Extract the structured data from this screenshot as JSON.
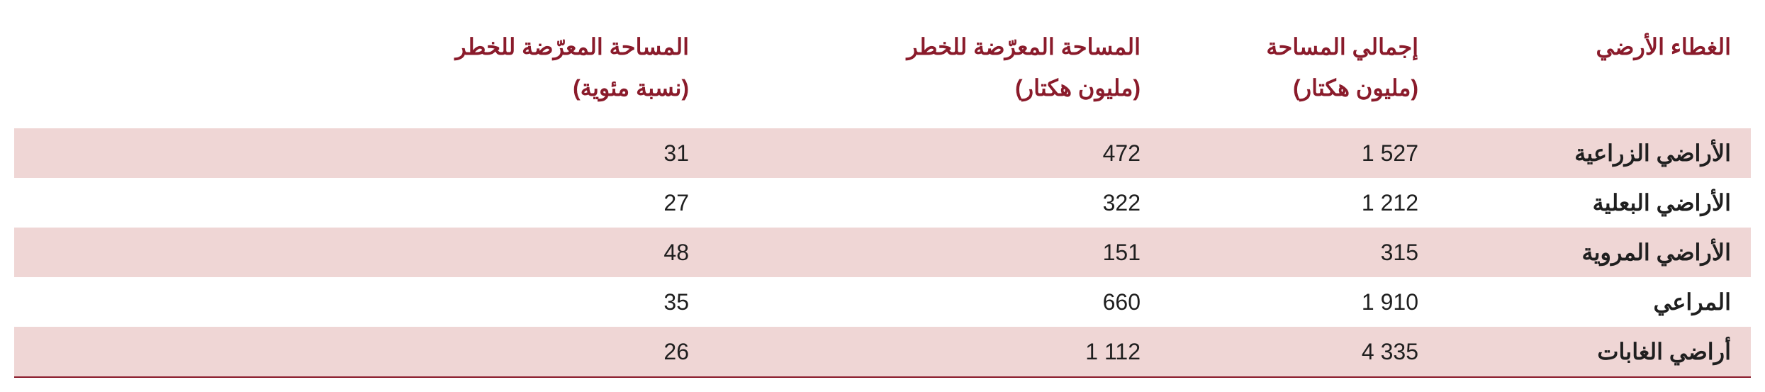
{
  "table": {
    "type": "table",
    "header_color": "#8a1b2b",
    "body_text_color": "#1f1f1f",
    "stripe_color": "#efd6d5",
    "background_color": "#ffffff",
    "border_color": "#8a1b2b",
    "header_fontsize": 32,
    "body_fontsize": 32,
    "column_widths_pct": [
      18,
      16,
      26,
      40
    ],
    "columns": [
      {
        "line1": "الغطاء الأرضي",
        "line2": "",
        "align": "right"
      },
      {
        "line1": "إجمالي المساحة",
        "line2": "(مليون هكتار)",
        "align": "right"
      },
      {
        "line1": "المساحة المعرّضة للخطر",
        "line2": "(مليون هكتار)",
        "align": "right"
      },
      {
        "line1": "المساحة المعرّضة للخطر",
        "line2": "(نسبة مئوية)",
        "align": "right"
      }
    ],
    "rows": [
      {
        "label": "الأراضي الزراعية",
        "total": "1 527",
        "risk_abs": "472",
        "risk_pct": "31"
      },
      {
        "label": "الأراضي البعلية",
        "total": "1 212",
        "risk_abs": "322",
        "risk_pct": "27"
      },
      {
        "label": "الأراضي المروية",
        "total": "315",
        "risk_abs": "151",
        "risk_pct": "48"
      },
      {
        "label": "المراعي",
        "total": "1 910",
        "risk_abs": "660",
        "risk_pct": "35"
      },
      {
        "label": "أراضي الغابات",
        "total": "4 335",
        "risk_abs": "1 112",
        "risk_pct": "26"
      }
    ]
  }
}
